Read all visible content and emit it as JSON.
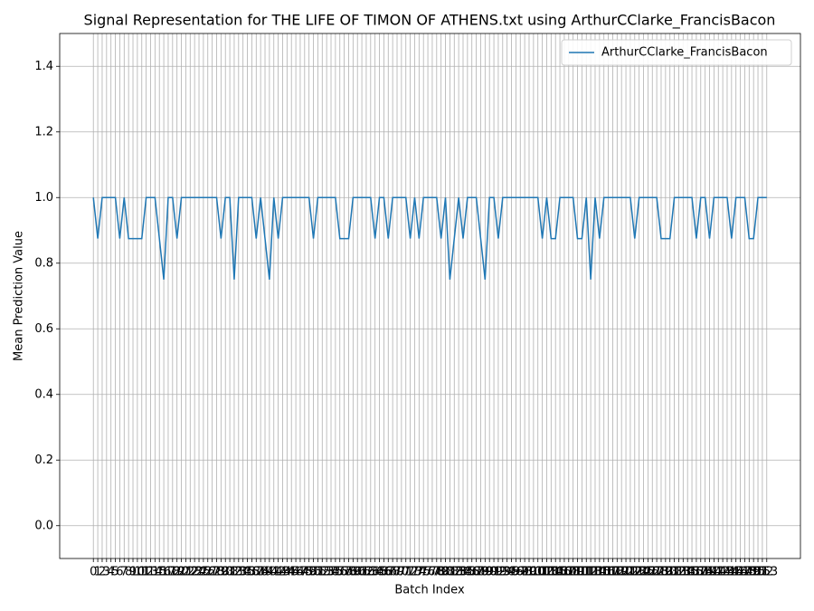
{
  "chart_data": {
    "type": "line",
    "title": "Signal Representation for THE LIFE OF TIMON OF ATHENS.txt using ArthurCClarke_FrancisBacon",
    "xlabel": "Batch Index",
    "ylabel": "Mean Prediction Value",
    "x": [
      0,
      1,
      2,
      3,
      4,
      5,
      6,
      7,
      8,
      9,
      10,
      11,
      12,
      13,
      14,
      15,
      16,
      17,
      18,
      19,
      20,
      21,
      22,
      23,
      24,
      25,
      26,
      27,
      28,
      29,
      30,
      31,
      32,
      33,
      34,
      35,
      36,
      37,
      38,
      39,
      40,
      41,
      42,
      43,
      44,
      45,
      46,
      47,
      48,
      49,
      50,
      51,
      52,
      53,
      54,
      55,
      56,
      57,
      58,
      59,
      60,
      61,
      62,
      63,
      64,
      65,
      66,
      67,
      68,
      69,
      70,
      71,
      72,
      73,
      74,
      75,
      76,
      77,
      78,
      79,
      80,
      81,
      82,
      83,
      84,
      85,
      86,
      87,
      88,
      89,
      90,
      91,
      92,
      93,
      94,
      95,
      96,
      97,
      98,
      99,
      100,
      101,
      102,
      103,
      104,
      105,
      106,
      107,
      108,
      109,
      110,
      111,
      112,
      113,
      114,
      115,
      116,
      117,
      118,
      119,
      120,
      121,
      122,
      123,
      124,
      125,
      126,
      127,
      128,
      129,
      130,
      131,
      132,
      133,
      134,
      135,
      136,
      137,
      138,
      139,
      140,
      141,
      142,
      143,
      144,
      145,
      146,
      147,
      148,
      149,
      150,
      151,
      152,
      153
    ],
    "series": [
      {
        "name": "ArthurCClarke_FrancisBacon",
        "color": "#1f77b4",
        "values": [
          1,
          0.875,
          1,
          1,
          1,
          1,
          0.875,
          1,
          0.875,
          0.875,
          0.875,
          0.875,
          1,
          1,
          1,
          0.875,
          0.75,
          1,
          1,
          0.875,
          1,
          1,
          1,
          1,
          1,
          1,
          1,
          1,
          1,
          0.875,
          1,
          1,
          0.75,
          1,
          1,
          1,
          1,
          0.875,
          1,
          0.875,
          0.75,
          1,
          0.875,
          1,
          1,
          1,
          1,
          1,
          1,
          1,
          0.875,
          1,
          1,
          1,
          1,
          1,
          0.875,
          0.875,
          0.875,
          1,
          1,
          1,
          1,
          1,
          0.875,
          1,
          1,
          0.875,
          1,
          1,
          1,
          1,
          0.875,
          1,
          0.875,
          1,
          1,
          1,
          1,
          0.875,
          1,
          0.75,
          0.875,
          1,
          0.875,
          1,
          1,
          1,
          0.875,
          0.75,
          1,
          1,
          0.875,
          1,
          1,
          1,
          1,
          1,
          1,
          1,
          1,
          1,
          0.875,
          1,
          0.875,
          0.875,
          1,
          1,
          1,
          1,
          0.875,
          0.875,
          1,
          0.75,
          1,
          0.875,
          1,
          1,
          1,
          1,
          1,
          1,
          1,
          0.875,
          1,
          1,
          1,
          1,
          1,
          0.875,
          0.875,
          0.875,
          1,
          1,
          1,
          1,
          1,
          0.875,
          1,
          1,
          0.875,
          1,
          1,
          1,
          1,
          0.875,
          1,
          1,
          1,
          0.875,
          0.875,
          1,
          1,
          1
        ]
      }
    ],
    "xlim": [
      -7.65,
      160.65
    ],
    "xticks": [
      0,
      1,
      2,
      3,
      4,
      5,
      6,
      7,
      8,
      9,
      10,
      11,
      12,
      13,
      14,
      15,
      16,
      17,
      18,
      19,
      20,
      21,
      22,
      23,
      24,
      25,
      26,
      27,
      28,
      29,
      30,
      31,
      32,
      33,
      34,
      35,
      36,
      37,
      38,
      39,
      40,
      41,
      42,
      43,
      44,
      45,
      46,
      47,
      48,
      49,
      50,
      51,
      52,
      53,
      54,
      55,
      56,
      57,
      58,
      59,
      60,
      61,
      62,
      63,
      64,
      65,
      66,
      67,
      68,
      69,
      70,
      71,
      72,
      73,
      74,
      75,
      76,
      77,
      78,
      79,
      80,
      81,
      82,
      83,
      84,
      85,
      86,
      87,
      88,
      89,
      90,
      91,
      92,
      93,
      94,
      95,
      96,
      97,
      98,
      99,
      100,
      101,
      102,
      103,
      104,
      105,
      106,
      107,
      108,
      109,
      110,
      111,
      112,
      113,
      114,
      115,
      116,
      117,
      118,
      119,
      120,
      121,
      122,
      123,
      124,
      125,
      126,
      127,
      128,
      129,
      130,
      131,
      132,
      133,
      134,
      135,
      136,
      137,
      138,
      139,
      140,
      141,
      142,
      143,
      144,
      145,
      146,
      147,
      148,
      149,
      150,
      151,
      152,
      153
    ],
    "ylim": [
      -0.1,
      1.5
    ],
    "yticks": [
      {
        "value": 0,
        "label": "0.0"
      },
      {
        "value": 0.2,
        "label": "0.2"
      },
      {
        "value": 0.4,
        "label": "0.4"
      },
      {
        "value": 0.6,
        "label": "0.6"
      },
      {
        "value": 0.8,
        "label": "0.8"
      },
      {
        "value": 1.0,
        "label": "1.0"
      },
      {
        "value": 1.2,
        "label": "1.2"
      },
      {
        "value": 1.4,
        "label": "1.4"
      }
    ],
    "grid": true,
    "legend": "upper right"
  }
}
